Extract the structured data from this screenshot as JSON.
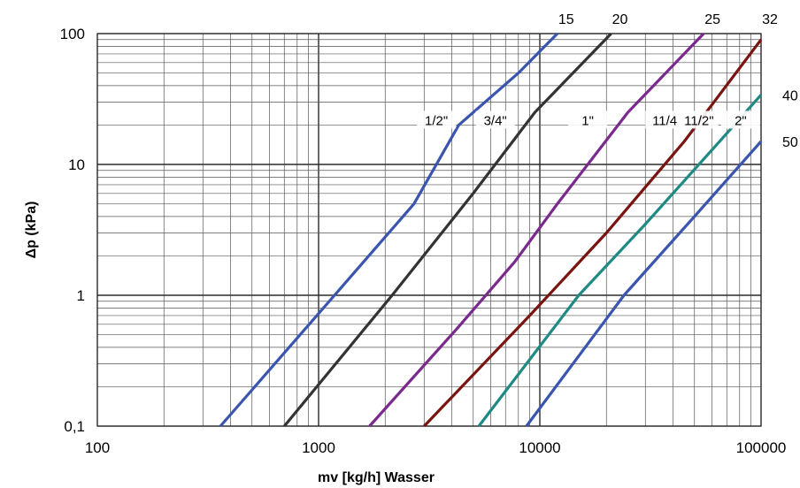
{
  "chart_data": {
    "type": "line",
    "x_scale": "log",
    "y_scale": "log",
    "xlim": [
      100,
      100000
    ],
    "ylim": [
      0.1,
      100
    ],
    "grid": true,
    "xlabel": "mv [kg/h] Wasser",
    "ylabel": "Δp (kPa)",
    "x_ticks": [
      {
        "value": 100,
        "label": "100"
      },
      {
        "value": 1000,
        "label": "1000"
      },
      {
        "value": 10000,
        "label": "10000"
      },
      {
        "value": 100000,
        "label": "100000"
      }
    ],
    "y_ticks": [
      {
        "value": 0.1,
        "label": "0,1"
      },
      {
        "value": 1,
        "label": "1"
      },
      {
        "value": 10,
        "label": "10"
      },
      {
        "value": 100,
        "label": "100"
      }
    ],
    "series": [
      {
        "dn": "15",
        "size": "1/2\"",
        "color": "#3a55b0",
        "x": [
          360,
          1180,
          2700,
          4300,
          8000,
          12000
        ],
        "y": [
          0.1,
          1,
          5,
          20,
          50,
          100
        ]
      },
      {
        "dn": "20",
        "size": "3/4\"",
        "color": "#333333",
        "x": [
          700,
          2150,
          5000,
          9500,
          21000
        ],
        "y": [
          0.1,
          1,
          6,
          25,
          100
        ]
      },
      {
        "dn": "25",
        "size": "1\"",
        "color": "#7a2a8c",
        "x": [
          1700,
          4200,
          7700,
          12000,
          25000,
          55000
        ],
        "y": [
          0.1,
          0.55,
          1.8,
          5,
          25,
          100
        ]
      },
      {
        "dn": "32",
        "size": "11/4",
        "color": "#7a1410",
        "x": [
          3000,
          9000,
          20000,
          45000,
          100000
        ],
        "y": [
          0.1,
          0.7,
          3,
          15,
          90
        ]
      },
      {
        "dn": "40",
        "size": "11/2\"",
        "color": "#1f8a84",
        "x": [
          5300,
          15000,
          30000,
          65000,
          100000
        ],
        "y": [
          0.1,
          1,
          3.5,
          15,
          34
        ]
      },
      {
        "dn": "50",
        "size": "2\"",
        "color": "#3a55b0",
        "x": [
          8700,
          24000,
          50000,
          100000
        ],
        "y": [
          0.1,
          1,
          4,
          15
        ]
      }
    ]
  }
}
